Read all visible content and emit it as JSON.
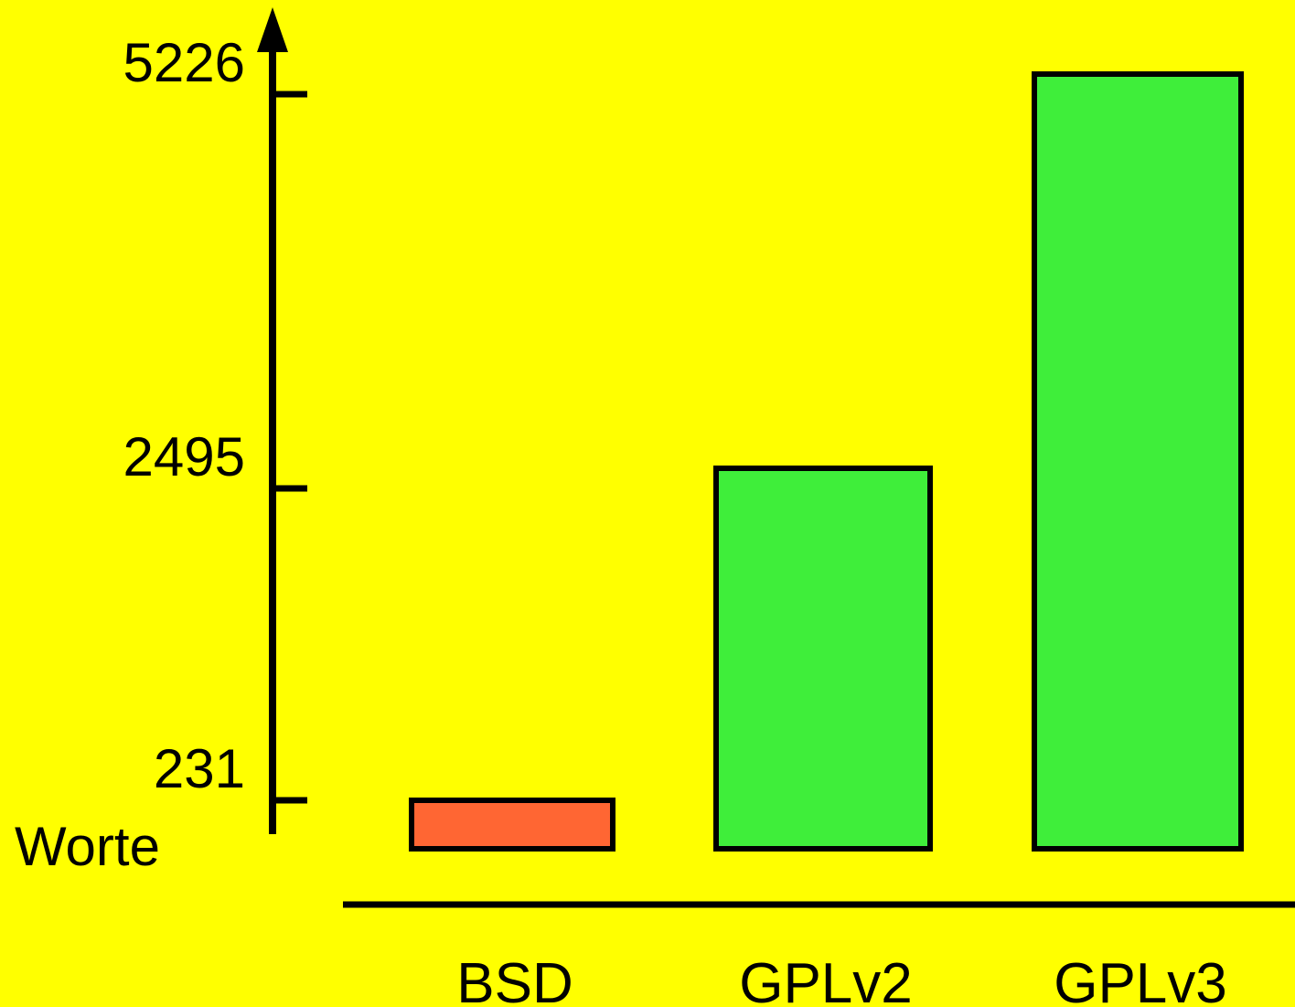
{
  "colors": {
    "background": "#ffff00",
    "axis": "#000000",
    "bar_outline": "#000000"
  },
  "chart_data": {
    "type": "bar",
    "ylabel": "Worte",
    "y_ticks": [
      231,
      2495,
      5226
    ],
    "categories": [
      "BSD",
      "GPLv2",
      "GPLv3"
    ],
    "values": [
      231,
      2495,
      5226
    ],
    "bar_colors": [
      "#ff6633",
      "#3fee3a",
      "#3fee3a"
    ],
    "grid": false
  }
}
